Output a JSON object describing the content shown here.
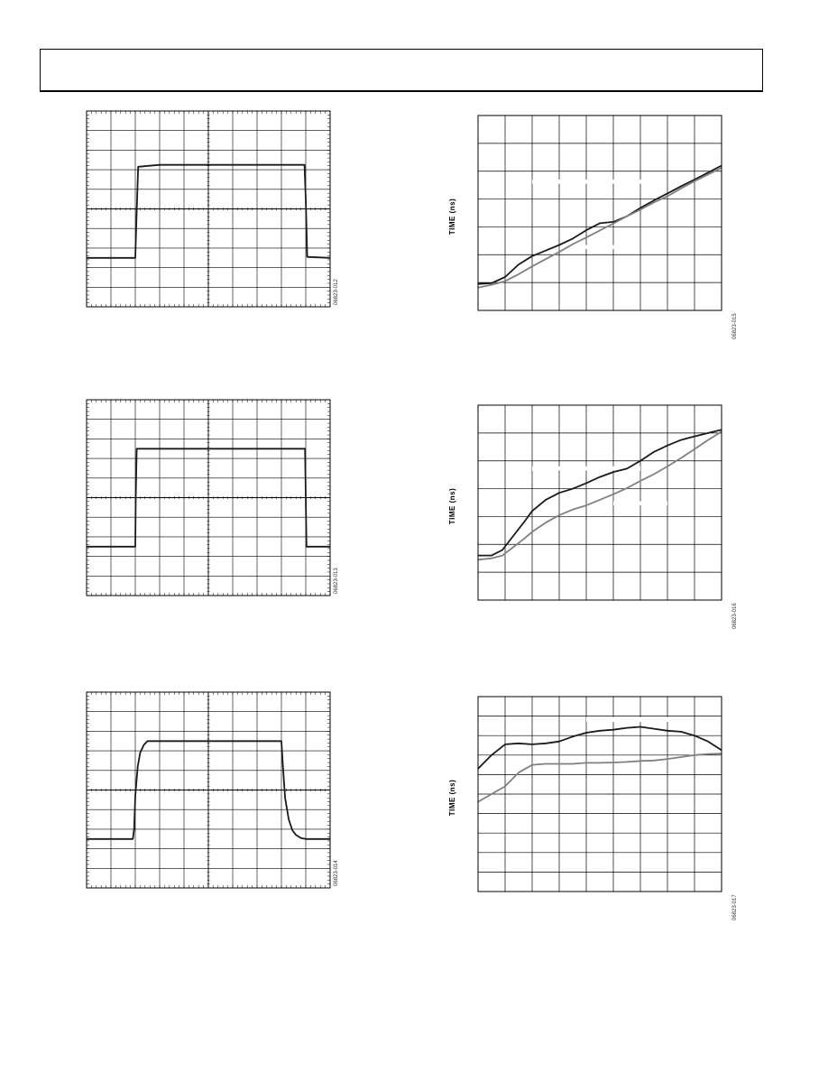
{
  "chart_data": [
    {
      "type": "line",
      "title": "",
      "xlabel": "",
      "ylabel": "",
      "grid": true,
      "code": "06823-012",
      "series": [
        {
          "x": [
            0,
            2,
            2.05,
            2.12,
            3,
            8,
            8.95,
            9,
            9.06,
            10
          ],
          "y": [
            -2.5,
            -2.5,
            -0.5,
            2.15,
            2.25,
            2.25,
            2.25,
            0.5,
            -2.45,
            -2.5
          ]
        }
      ]
    },
    {
      "type": "line",
      "title": "",
      "xlabel": "",
      "ylabel": "",
      "grid": true,
      "code": "06823-013",
      "series": [
        {
          "x": [
            0,
            2,
            2.02,
            2.06,
            3,
            8,
            8.97,
            9,
            9.03,
            10
          ],
          "y": [
            -2.5,
            -2.5,
            0,
            2.5,
            2.5,
            2.5,
            2.5,
            0,
            -2.5,
            -2.5
          ]
        }
      ]
    },
    {
      "type": "line",
      "title": "",
      "xlabel": "",
      "ylabel": "",
      "grid": true,
      "code": "06823-014",
      "series": [
        {
          "x": [
            0,
            1.9,
            1.95,
            2.0,
            2.1,
            2.2,
            2.35,
            2.5,
            8.0,
            8.05,
            8.15,
            8.3,
            8.45,
            8.6,
            8.8,
            9.0,
            10
          ],
          "y": [
            -2.5,
            -2.5,
            -2.0,
            -0.3,
            1.2,
            1.9,
            2.3,
            2.5,
            2.5,
            1.4,
            -0.4,
            -1.5,
            -2.05,
            -2.3,
            -2.45,
            -2.5,
            -2.5
          ]
        }
      ]
    },
    {
      "type": "line",
      "title": "",
      "xlabel": "",
      "ylabel": "TIME (ns)",
      "grid": true,
      "code": "06823-015",
      "series": [
        {
          "color": "#1a1a1a",
          "x": [
            0,
            0.5,
            1,
            1.5,
            2,
            2.5,
            3,
            3.5,
            4,
            4.5,
            5,
            5.5,
            6,
            6.5,
            7,
            7.5,
            8,
            8.5,
            9
          ],
          "y": [
            0.95,
            0.98,
            1.2,
            1.65,
            1.95,
            2.15,
            2.35,
            2.58,
            2.88,
            3.13,
            3.18,
            3.38,
            3.68,
            3.95,
            4.2,
            4.46,
            4.7,
            4.95,
            5.2
          ]
        },
        {
          "color": "#808080",
          "x": [
            0,
            0.5,
            1,
            1.5,
            2,
            2.5,
            3,
            3.5,
            4,
            4.5,
            5,
            5.5,
            6,
            6.5,
            7,
            7.5,
            8,
            8.5,
            9
          ],
          "y": [
            0.82,
            0.92,
            1.05,
            1.3,
            1.58,
            1.84,
            2.1,
            2.38,
            2.62,
            2.87,
            3.12,
            3.38,
            3.62,
            3.88,
            4.1,
            4.38,
            4.64,
            4.88,
            5.12
          ]
        }
      ],
      "legend_masks": [
        [
          2,
          4.55,
          6.5,
          4.7
        ],
        [
          3.65,
          2.2,
          5.1,
          2.35
        ]
      ]
    },
    {
      "type": "line",
      "title": "",
      "xlabel": "",
      "ylabel": "TIME (ns)",
      "grid": true,
      "code": "06823-016",
      "series": [
        {
          "color": "#1a1a1a",
          "x": [
            0,
            0.5,
            0.9,
            1.3,
            1.7,
            2,
            2.5,
            3,
            3.5,
            4,
            4.5,
            5,
            5.5,
            6,
            6.5,
            7,
            7.5,
            8,
            8.5,
            9
          ],
          "y": [
            1.6,
            1.6,
            1.8,
            2.3,
            2.8,
            3.2,
            3.6,
            3.85,
            4.0,
            4.2,
            4.42,
            4.6,
            4.72,
            5.0,
            5.32,
            5.55,
            5.75,
            5.88,
            6.0,
            6.12
          ]
        },
        {
          "color": "#808080",
          "x": [
            0,
            0.5,
            0.9,
            1.3,
            1.7,
            2,
            2.5,
            3,
            3.5,
            4,
            4.5,
            5,
            5.5,
            6,
            6.5,
            7,
            7.5,
            8,
            8.5,
            9
          ],
          "y": [
            1.45,
            1.5,
            1.6,
            1.9,
            2.2,
            2.45,
            2.78,
            3.05,
            3.25,
            3.4,
            3.6,
            3.8,
            4.02,
            4.28,
            4.52,
            4.8,
            5.1,
            5.42,
            5.75,
            6.05
          ]
        }
      ],
      "legend_masks": [
        [
          2,
          4.65,
          6,
          4.8
        ],
        [
          5,
          3.4,
          7,
          3.55
        ]
      ]
    },
    {
      "type": "line",
      "title": "",
      "xlabel": "",
      "ylabel": "TIME (ns)",
      "grid": true,
      "code": "06823-017",
      "series": [
        {
          "color": "#1a1a1a",
          "x": [
            0,
            0.5,
            1,
            1.5,
            2,
            2.5,
            3,
            3.5,
            4,
            4.5,
            5,
            5.5,
            6,
            6.5,
            7,
            7.5,
            8,
            8.5,
            9
          ],
          "y": [
            6.3,
            7.0,
            7.55,
            7.6,
            7.55,
            7.6,
            7.7,
            7.95,
            8.15,
            8.25,
            8.3,
            8.4,
            8.45,
            8.35,
            8.25,
            8.2,
            8.0,
            7.7,
            7.25
          ]
        },
        {
          "color": "#808080",
          "x": [
            0,
            0.5,
            1,
            1.5,
            2,
            2.5,
            3,
            3.5,
            4,
            4.5,
            5,
            5.5,
            6,
            6.5,
            7,
            7.5,
            8,
            8.5,
            9
          ],
          "y": [
            4.6,
            5.0,
            5.4,
            6.1,
            6.5,
            6.55,
            6.55,
            6.55,
            6.6,
            6.6,
            6.62,
            6.65,
            6.7,
            6.72,
            6.8,
            6.9,
            7.0,
            7.05,
            7.08
          ]
        }
      ],
      "legend_masks": [
        [
          4,
          8.7,
          7.2,
          8.95
        ]
      ]
    }
  ]
}
